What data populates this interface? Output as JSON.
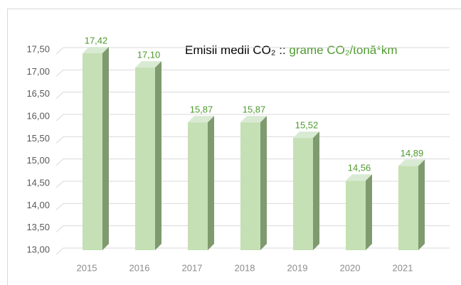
{
  "chart_data": {
    "type": "bar3d",
    "title": "Emisii medii CO₂ ::",
    "subtitle": "grame CO₂/tonă*km",
    "categories": [
      "2015",
      "2016",
      "2017",
      "2018",
      "2019",
      "2020",
      "2021"
    ],
    "values": [
      17.42,
      17.1,
      15.87,
      15.87,
      15.52,
      14.56,
      14.89
    ],
    "value_labels": [
      "17,42",
      "17,10",
      "15,87",
      "15,87",
      "15,52",
      "14,56",
      "14,89"
    ],
    "color": "#c5e0b4",
    "ylim": [
      13,
      17.5
    ],
    "yticks": [
      {
        "value": 13,
        "label": "13,00"
      },
      {
        "value": 13.5,
        "label": "13,50"
      },
      {
        "value": 14,
        "label": "14,00"
      },
      {
        "value": 14.5,
        "label": "14,50"
      },
      {
        "value": 15,
        "label": "15,00"
      },
      {
        "value": 15.5,
        "label": "15,50"
      },
      {
        "value": 16,
        "label": "16,00"
      },
      {
        "value": 16.5,
        "label": "16,50"
      },
      {
        "value": 17,
        "label": "17,00"
      },
      {
        "value": 17.5,
        "label": "17,50"
      }
    ],
    "grid": true
  }
}
